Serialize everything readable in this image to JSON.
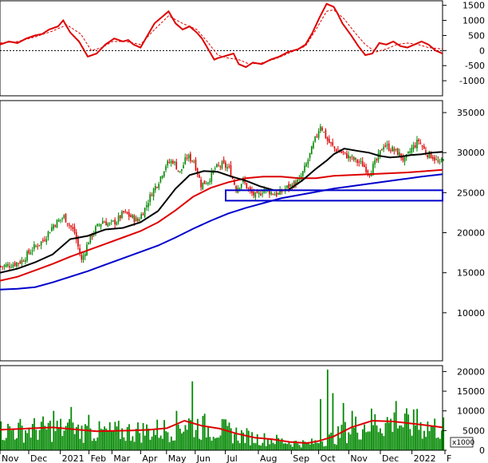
{
  "chart_data": [
    {
      "type": "line",
      "name": "oscillator",
      "ylim": [
        -1500,
        1650
      ],
      "yticks": [
        "1500",
        "1000",
        "500",
        "0",
        "-500",
        "-1000"
      ],
      "ytick_values": [
        1500,
        1000,
        500,
        0,
        -500,
        -1000
      ],
      "reference_line": 0,
      "colors": {
        "main": "#dd0000",
        "signal": "#dd0000",
        "ref": "#000000"
      },
      "series": [
        {
          "style": "solid",
          "x": [
            0,
            5,
            10,
            15,
            20,
            24,
            28,
            33,
            36,
            40,
            45,
            50,
            55,
            60,
            65,
            70,
            73,
            76,
            80,
            84,
            88,
            92,
            96,
            100,
            104,
            108,
            112,
            115,
            117,
            120,
            122,
            124,
            127,
            130,
            133,
            136,
            140,
            144,
            149,
            154,
            159,
            164,
            170,
            174,
            178,
            182,
            186,
            190,
            192,
            195,
            200,
            204,
            208,
            212,
            216,
            220,
            224,
            228,
            232,
            236,
            240,
            244,
            248,
            252
          ],
          "y": [
            200,
            300,
            250,
            400,
            500,
            550,
            700,
            800,
            1000,
            600,
            300,
            -200,
            -100,
            200,
            400,
            300,
            350,
            200,
            100,
            500,
            900,
            1100,
            1300,
            900,
            700,
            800,
            600,
            400,
            200,
            -100,
            -300,
            -250,
            -200,
            -150,
            -100,
            -450,
            -550,
            -400,
            -450,
            -300,
            -200,
            -50,
            50,
            200,
            600,
            1100,
            1550,
            1450,
            1250,
            900,
            500,
            150,
            -150,
            -100,
            250,
            200,
            300,
            150,
            100,
            200,
            300,
            200,
            0,
            -100
          ]
        },
        {
          "style": "dashed",
          "x": [
            0,
            10,
            20,
            30,
            38,
            46,
            52,
            58,
            64,
            72,
            80,
            88,
            96,
            104,
            112,
            118,
            124,
            130,
            136,
            142,
            150,
            158,
            166,
            174,
            180,
            186,
            190,
            196,
            202,
            208,
            214,
            220,
            226,
            232,
            238,
            244,
            252
          ],
          "y": [
            250,
            300,
            450,
            650,
            850,
            550,
            0,
            100,
            300,
            300,
            200,
            700,
            1150,
            900,
            700,
            300,
            -150,
            -250,
            -300,
            -450,
            -400,
            -250,
            -50,
            150,
            700,
            1300,
            1350,
            1050,
            600,
            200,
            -50,
            50,
            200,
            250,
            200,
            100,
            50
          ]
        }
      ]
    },
    {
      "type": "candlestick",
      "name": "price",
      "ylim": [
        4000,
        36500
      ],
      "yticks": [
        "35000",
        "30000",
        "25000",
        "20000",
        "15000",
        "10000"
      ],
      "ytick_values": [
        35000,
        30000,
        25000,
        20000,
        15000,
        10000
      ],
      "colors": {
        "up": "#008800",
        "down": "#dd0000",
        "ma_short": "#000000",
        "ma_mid": "#dd0000",
        "ma_long": "#0000cc",
        "box": "#0000cc"
      },
      "close_path": {
        "x": [
          0,
          6,
          12,
          18,
          24,
          30,
          36,
          42,
          46,
          50,
          54,
          58,
          62,
          66,
          70,
          74,
          78,
          82,
          86,
          90,
          94,
          98,
          102,
          106,
          110,
          114,
          118,
          122,
          126,
          130,
          134,
          138,
          142,
          146,
          150,
          154,
          158,
          162,
          166,
          170,
          174,
          178,
          182,
          186,
          190,
          194,
          198,
          202,
          206,
          210,
          214,
          218,
          222,
          226,
          230,
          234,
          238,
          242,
          246,
          250,
          252
        ],
        "y": [
          15800,
          16000,
          16500,
          18000,
          19000,
          21000,
          22000,
          20000,
          16500,
          19000,
          20500,
          21500,
          21000,
          21500,
          22500,
          22000,
          21500,
          23000,
          25000,
          26500,
          28500,
          29000,
          27500,
          29500,
          29000,
          26000,
          26500,
          28000,
          28500,
          28000,
          25500,
          26500,
          25000,
          24500,
          25500,
          25000,
          24800,
          25500,
          26000,
          26500,
          28500,
          31000,
          33500,
          31500,
          30500,
          30000,
          29500,
          29000,
          28500,
          27500,
          29000,
          31000,
          30500,
          30000,
          29000,
          30500,
          31500,
          30000,
          29500,
          28500,
          29500
        ]
      },
      "ma_short": {
        "x": [
          0,
          10,
          20,
          30,
          40,
          50,
          60,
          70,
          80,
          90,
          100,
          108,
          116,
          124,
          132,
          140,
          148,
          156,
          164,
          172,
          180,
          186,
          190,
          196,
          204,
          210,
          216,
          222,
          228,
          234,
          240,
          246,
          252
        ],
        "y": [
          15000,
          15500,
          16300,
          17300,
          19200,
          19600,
          20400,
          20600,
          21300,
          22700,
          25500,
          27200,
          27700,
          27600,
          27000,
          26500,
          25800,
          25300,
          25300,
          26500,
          28000,
          29000,
          29800,
          30500,
          30200,
          30000,
          29600,
          29400,
          29500,
          29700,
          29800,
          30000,
          30100
        ]
      },
      "ma_mid": {
        "x": [
          0,
          10,
          20,
          30,
          40,
          50,
          60,
          70,
          80,
          90,
          100,
          110,
          120,
          130,
          140,
          150,
          160,
          170,
          180,
          190,
          200,
          210,
          220,
          230,
          240,
          252
        ],
        "y": [
          14000,
          14500,
          15300,
          16100,
          17000,
          17800,
          18600,
          19400,
          20200,
          21300,
          22800,
          24500,
          25600,
          26300,
          26800,
          27000,
          27000,
          26800,
          26800,
          27100,
          27200,
          27300,
          27400,
          27500,
          27650,
          27850
        ]
      },
      "ma_long": {
        "x": [
          0,
          10,
          20,
          30,
          40,
          50,
          60,
          70,
          80,
          90,
          100,
          110,
          120,
          130,
          140,
          150,
          160,
          170,
          180,
          190,
          200,
          210,
          220,
          230,
          240,
          252
        ],
        "y": [
          12900,
          13000,
          13200,
          13800,
          14500,
          15200,
          16000,
          16800,
          17600,
          18400,
          19400,
          20500,
          21500,
          22400,
          23100,
          23700,
          24300,
          24700,
          25100,
          25500,
          25800,
          26100,
          26400,
          26700,
          27000,
          27300
        ]
      },
      "support_box": {
        "x_range": [
          0,
          1
        ],
        "y_range": [
          24000,
          25300
        ]
      }
    },
    {
      "type": "bar",
      "name": "volume",
      "ylim": [
        0,
        21500
      ],
      "yticks": [
        "20000",
        "15000",
        "10000",
        "5000",
        "0"
      ],
      "ytick_values": [
        20000,
        15000,
        10000,
        5000,
        0
      ],
      "unit_label": "x1000",
      "colors": {
        "bars": "#008800",
        "ma": "#dd0000"
      },
      "volume_ma": {
        "x": [
          0,
          15,
          30,
          45,
          55,
          65,
          75,
          85,
          95,
          105,
          115,
          125,
          135,
          145,
          155,
          165,
          175,
          182,
          190,
          200,
          212,
          224,
          240,
          252
        ],
        "y": [
          5200,
          5500,
          5800,
          5200,
          4800,
          4900,
          5000,
          5200,
          5600,
          7500,
          6200,
          5500,
          4200,
          3200,
          2800,
          2100,
          1800,
          2400,
          3500,
          5800,
          7500,
          7300,
          6500,
          5800
        ]
      }
    }
  ],
  "x_axis": {
    "labels": [
      "Nov",
      "Dec",
      "2021",
      "Feb",
      "Mar",
      "Apr",
      "May",
      "Jun",
      "Jul",
      "Aug",
      "Sep",
      "Oct",
      "Nov",
      "Dec",
      "2022",
      "F"
    ],
    "positions": [
      0,
      20,
      42,
      62,
      78,
      98,
      116,
      136,
      157,
      180,
      203,
      222,
      243,
      265,
      287,
      310
    ],
    "span": 310
  }
}
